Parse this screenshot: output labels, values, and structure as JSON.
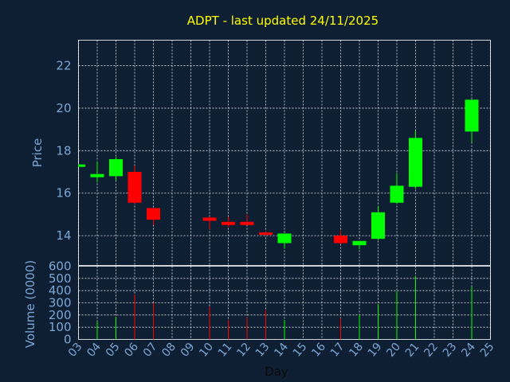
{
  "chart_data": {
    "type": "candlestick",
    "title": "ADPT - last updated 24/11/2025",
    "xlabel": "Day",
    "price_panel": {
      "ylabel": "Price",
      "ylim": [
        12.6,
        23.2
      ],
      "yticks": [
        14,
        16,
        18,
        20,
        22
      ],
      "grid": true
    },
    "volume_panel": {
      "ylabel": "Volume (0000)",
      "ylim": [
        0,
        600
      ],
      "yticks": [
        0,
        100,
        200,
        300,
        400,
        500,
        600
      ],
      "grid": true
    },
    "x_ticks": [
      "03",
      "04",
      "05",
      "06",
      "07",
      "08",
      "09",
      "10",
      "11",
      "12",
      "13",
      "14",
      "15",
      "16",
      "17",
      "18",
      "19",
      "20",
      "21",
      "22",
      "23",
      "24",
      "25"
    ],
    "colors": {
      "up": "#00ff00",
      "down": "#ff0000"
    },
    "candles": [
      {
        "day": "03",
        "open": 17.25,
        "close": 17.35,
        "high": 17.35,
        "low": 17.25,
        "volume": 0,
        "dir": "up"
      },
      {
        "day": "04",
        "open": 16.75,
        "close": 16.9,
        "high": 17.5,
        "low": 16.5,
        "volume": 150,
        "dir": "up"
      },
      {
        "day": "05",
        "open": 16.8,
        "close": 17.6,
        "high": 17.7,
        "low": 16.6,
        "volume": 185,
        "dir": "up"
      },
      {
        "day": "06",
        "open": 17.0,
        "close": 15.55,
        "high": 17.3,
        "low": 15.5,
        "volume": 370,
        "dir": "down"
      },
      {
        "day": "07",
        "open": 15.3,
        "close": 14.75,
        "high": 15.3,
        "low": 14.5,
        "volume": 300,
        "dir": "down"
      },
      {
        "day": "10",
        "open": 14.85,
        "close": 14.7,
        "high": 14.9,
        "low": 14.3,
        "volume": 270,
        "dir": "down"
      },
      {
        "day": "11",
        "open": 14.65,
        "close": 14.5,
        "high": 14.9,
        "low": 14.4,
        "volume": 160,
        "dir": "down"
      },
      {
        "day": "12",
        "open": 14.65,
        "close": 14.5,
        "high": 15.0,
        "low": 14.5,
        "volume": 180,
        "dir": "down"
      },
      {
        "day": "13",
        "open": 14.15,
        "close": 14.1,
        "high": 14.2,
        "low": 14.0,
        "volume": 240,
        "dir": "down"
      },
      {
        "day": "14",
        "open": 13.65,
        "close": 14.1,
        "high": 14.1,
        "low": 13.4,
        "volume": 160,
        "dir": "up"
      },
      {
        "day": "17",
        "open": 14.0,
        "close": 13.65,
        "high": 14.25,
        "low": 13.6,
        "volume": 175,
        "dir": "down"
      },
      {
        "day": "18",
        "open": 13.55,
        "close": 13.75,
        "high": 13.75,
        "low": 13.35,
        "volume": 205,
        "dir": "up"
      },
      {
        "day": "19",
        "open": 13.85,
        "close": 15.1,
        "high": 15.4,
        "low": 13.8,
        "volume": 290,
        "dir": "up"
      },
      {
        "day": "20",
        "open": 15.55,
        "close": 16.35,
        "high": 16.95,
        "low": 15.5,
        "volume": 395,
        "dir": "up"
      },
      {
        "day": "21",
        "open": 16.3,
        "close": 18.6,
        "high": 18.95,
        "low": 16.2,
        "volume": 520,
        "dir": "up"
      },
      {
        "day": "24",
        "open": 18.9,
        "close": 20.4,
        "high": 20.4,
        "low": 18.4,
        "volume": 430,
        "dir": "up"
      }
    ]
  }
}
